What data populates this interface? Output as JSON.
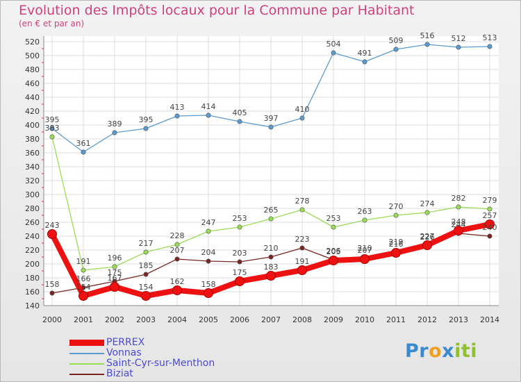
{
  "chart_data": {
    "type": "line",
    "title": "Evolution des Impôts locaux pour la Commune par Habitant",
    "subtitle": "(en € et par an)",
    "x": [
      2000,
      2001,
      2002,
      2003,
      2004,
      2005,
      2006,
      2007,
      2008,
      2009,
      2010,
      2011,
      2012,
      2013,
      2014
    ],
    "ylim": [
      140,
      520
    ],
    "ytick_step": 20,
    "grid": true,
    "legend_position": "bottom-left",
    "series": [
      {
        "name": "PERREX",
        "color": "#ee1111",
        "values": [
          243,
          154,
          167,
          154,
          162,
          158,
          175,
          183,
          191,
          205,
          207,
          216,
          227,
          248,
          257
        ]
      },
      {
        "name": "Vonnas",
        "color": "#5b9bd0",
        "values": [
          395,
          361,
          389,
          395,
          413,
          414,
          405,
          397,
          410,
          504,
          491,
          509,
          516,
          512,
          513
        ]
      },
      {
        "name": "Saint-Cyr-sur-Menthon",
        "color": "#99dd55",
        "values": [
          383,
          191,
          196,
          217,
          228,
          247,
          253,
          265,
          278,
          253,
          263,
          270,
          274,
          282,
          279
        ]
      },
      {
        "name": "Biziat",
        "color": "#7a2424",
        "values": [
          158,
          166,
          175,
          185,
          207,
          204,
          203,
          210,
          223,
          206,
          210,
          219,
          226,
          244,
          240
        ]
      }
    ]
  },
  "logo": {
    "p1": "Pr",
    "p2": "o",
    "p3": "x",
    "p4": "iti"
  }
}
